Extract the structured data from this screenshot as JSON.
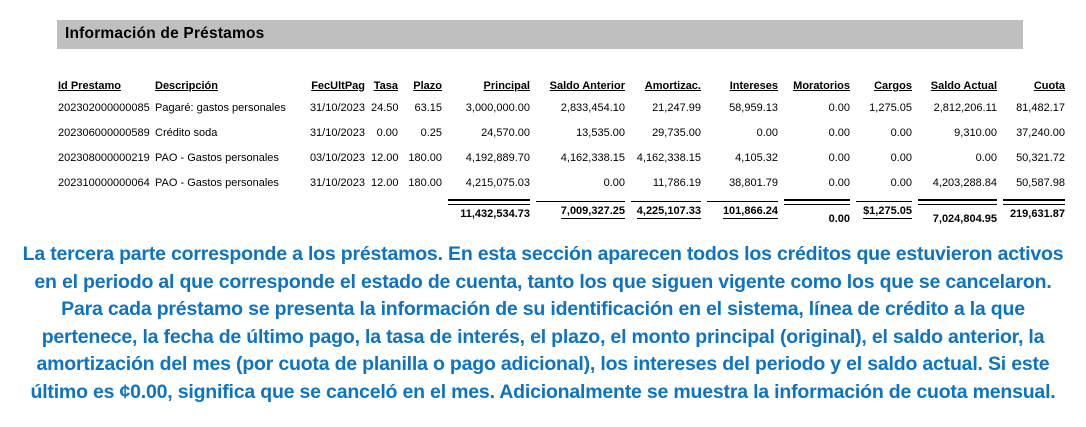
{
  "title": "Información de Préstamos",
  "colors": {
    "title_bar_bg": "#bfbfbf",
    "note_text": "#0d73c4"
  },
  "table": {
    "columns": [
      {
        "key": "id",
        "label": "Id Prestamo"
      },
      {
        "key": "desc",
        "label": "Descripción"
      },
      {
        "key": "fec",
        "label": "FecUltPag"
      },
      {
        "key": "tasa",
        "label": "Tasa"
      },
      {
        "key": "plazo",
        "label": "Plazo"
      },
      {
        "key": "principal",
        "label": "Principal"
      },
      {
        "key": "saldo_anterior",
        "label": "Saldo Anterior"
      },
      {
        "key": "amortizac",
        "label": "Amortizac."
      },
      {
        "key": "intereses",
        "label": "Intereses"
      },
      {
        "key": "moratorios",
        "label": "Moratorios"
      },
      {
        "key": "cargos",
        "label": "Cargos"
      },
      {
        "key": "saldo_actual",
        "label": "Saldo Actual"
      },
      {
        "key": "cuota",
        "label": "Cuota"
      }
    ],
    "rows": [
      {
        "id": "202302000000085",
        "desc": "Pagaré: gastos personales",
        "fec": "31/10/2023",
        "tasa": "24.50",
        "plazo": "63.15",
        "principal": "3,000,000.00",
        "saldo_anterior": "2,833,454.10",
        "amortizac": "21,247.99",
        "intereses": "58,959.13",
        "moratorios": "0.00",
        "cargos": "1,275.05",
        "saldo_actual": "2,812,206.11",
        "cuota": "81,482.17"
      },
      {
        "id": "202306000000589",
        "desc": "Crédito soda",
        "fec": "31/10/2023",
        "tasa": "0.00",
        "plazo": "0.25",
        "principal": "24,570.00",
        "saldo_anterior": "13,535.00",
        "amortizac": "29,735.00",
        "intereses": "0.00",
        "moratorios": "0.00",
        "cargos": "0.00",
        "saldo_actual": "9,310.00",
        "cuota": "37,240.00"
      },
      {
        "id": "202308000000219",
        "desc": "PAO - Gastos personales",
        "fec": "03/10/2023",
        "tasa": "12.00",
        "plazo": "180.00",
        "principal": "4,192,889.70",
        "saldo_anterior": "4,162,338.15",
        "amortizac": "4,162,338.15",
        "intereses": "4,105.32",
        "moratorios": "0.00",
        "cargos": "0.00",
        "saldo_actual": "0.00",
        "cuota": "50,321.72"
      },
      {
        "id": "202310000000064",
        "desc": "PAO - Gastos personales",
        "fec": "31/10/2023",
        "tasa": "12.00",
        "plazo": "180.00",
        "principal": "4,215,075.03",
        "saldo_anterior": "0.00",
        "amortizac": "11,786.19",
        "intereses": "38,801.79",
        "moratorios": "0.00",
        "cargos": "0.00",
        "saldo_actual": "4,203,288.84",
        "cuota": "50,587.98"
      }
    ],
    "totals": {
      "principal": "11,432,534.73",
      "saldo_anterior": "7,009,327.25",
      "amortizac": "4,225,107.33",
      "intereses": "101,866.24",
      "moratorios": "0.00",
      "cargos": "$1,275.05",
      "saldo_actual": "7,024,804.95",
      "cuota": "219,631.87"
    }
  },
  "note": {
    "text": "La tercera parte corresponde a los préstamos. En esta sección aparecen todos los créditos que estuvieron activos en el periodo al que corresponde el estado de cuenta, tanto los que siguen vigente como los que se cancelaron.  Para cada préstamo se presenta la información de su identificación en el sistema, línea de crédito a la que pertenece, la fecha de último pago, la tasa de interés, el plazo, el monto principal (original), el saldo anterior, la amortización del mes (por cuota de planilla o pago adicional), los intereses del periodo y el saldo actual. Si este último es ¢0.00, significa que se canceló en el mes. Adicionalmente se muestra la información de cuota mensual."
  }
}
